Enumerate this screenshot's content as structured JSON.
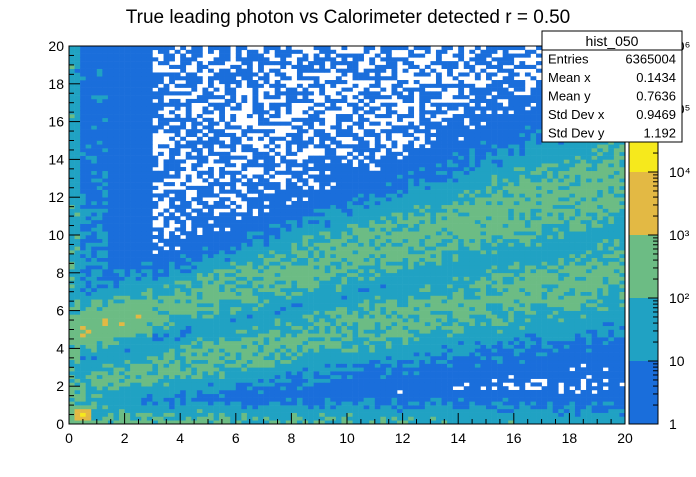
{
  "chart_data": {
    "type": "heatmap",
    "title": "True leading photon vs Calorimeter detected r = 0.50",
    "xlabel": "",
    "ylabel": "",
    "xlim": [
      0,
      20
    ],
    "ylim": [
      0,
      20
    ],
    "x_ticks": [
      "0",
      "2",
      "4",
      "6",
      "8",
      "10",
      "12",
      "14",
      "16",
      "18",
      "20"
    ],
    "y_ticks": [
      "0",
      "2",
      "4",
      "6",
      "8",
      "10",
      "12",
      "14",
      "16",
      "18",
      "20"
    ],
    "bins": [
      100,
      100
    ],
    "color_scale": "log",
    "z_range": [
      1,
      1000000
    ],
    "color_axis_ticks": [
      "1",
      "10",
      "10²",
      "10³",
      "10⁴",
      "10⁵",
      "10⁶"
    ],
    "palette": [
      "#1a6edb",
      "#20a2c3",
      "#6cbc84",
      "#e3b944",
      "#f6e91c"
    ],
    "grid": false,
    "stats_box": {
      "title": "hist_050",
      "rows": [
        {
          "label": "Entries",
          "value": "6365004"
        },
        {
          "label": "Mean x",
          "value": "0.1434"
        },
        {
          "label": "Mean y",
          "value": "0.7636"
        },
        {
          "label": "Std Dev x",
          "value": "0.9469"
        },
        {
          "label": "Std Dev y",
          "value": "1.192"
        }
      ]
    },
    "features": [
      {
        "name": "upper band",
        "from": [
          0,
          4.8
        ],
        "to": [
          20,
          13.0
        ],
        "peak_decades": 2.3
      },
      {
        "name": "middle band",
        "from": [
          0,
          2.0
        ],
        "to": [
          20,
          8.0
        ],
        "peak_decades": 2.2
      },
      {
        "name": "lower band",
        "from": [
          0,
          0.5
        ],
        "to": [
          20,
          0.5
        ],
        "peak_decades": 2.4
      },
      {
        "name": "core near origin",
        "x": [
          0,
          1
        ],
        "y": [
          0,
          1
        ],
        "peak_decades": 4.5
      }
    ]
  }
}
